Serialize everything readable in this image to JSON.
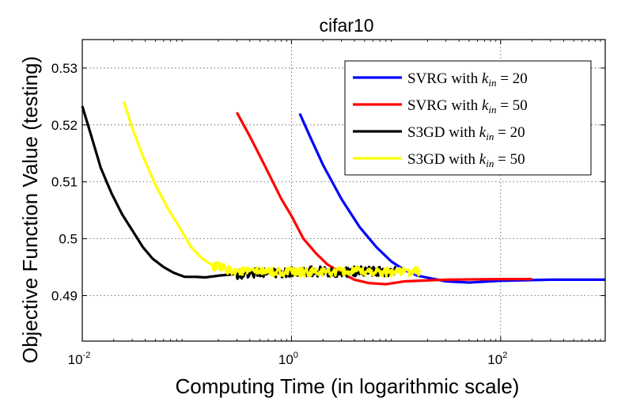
{
  "chart_data": {
    "type": "line",
    "title": "cifar10",
    "xlabel": "Computing Time (in logarithmic scale)",
    "ylabel": "Objective Function Value (testing)",
    "x_scale": "log",
    "xlim": [
      0.01,
      1000
    ],
    "ylim": [
      0.482,
      0.535
    ],
    "x_ticks": [
      {
        "value": 0.01,
        "base": "10",
        "exp": "-2"
      },
      {
        "value": 1,
        "base": "10",
        "exp": "0"
      },
      {
        "value": 100,
        "base": "10",
        "exp": "2"
      }
    ],
    "y_ticks": [
      {
        "value": 0.49,
        "label": "0.49"
      },
      {
        "value": 0.5,
        "label": "0.5"
      },
      {
        "value": 0.51,
        "label": "0.51"
      },
      {
        "value": 0.52,
        "label": "0.52"
      },
      {
        "value": 0.53,
        "label": "0.53"
      }
    ],
    "grid": true,
    "legend_position": "top-right",
    "series": [
      {
        "name": "SVRG with k_in = 20",
        "legend_prefix": "SVRG with ",
        "legend_var": "k",
        "legend_sub": "in",
        "legend_suffix": " = 20",
        "color": "#0000ff",
        "noise": false,
        "x": [
          1.2,
          1.5,
          2.0,
          3.0,
          4.5,
          6.5,
          9.0,
          12.0,
          16.0,
          22.0,
          30.0,
          50.0,
          100.0,
          300.0,
          1000.0
        ],
        "y": [
          0.522,
          0.518,
          0.513,
          0.507,
          0.502,
          0.4985,
          0.496,
          0.4945,
          0.4935,
          0.493,
          0.4925,
          0.4923,
          0.4926,
          0.4928,
          0.4928
        ]
      },
      {
        "name": "SVRG with k_in = 50",
        "legend_prefix": "SVRG with ",
        "legend_var": "k",
        "legend_sub": "in",
        "legend_suffix": " = 50",
        "color": "#ff0000",
        "noise": false,
        "x": [
          0.3,
          0.4,
          0.55,
          0.8,
          1.0,
          1.3,
          1.7,
          2.2,
          3.0,
          4.0,
          5.5,
          8.0,
          12.0,
          30.0,
          100.0,
          200.0
        ],
        "y": [
          0.5222,
          0.518,
          0.513,
          0.507,
          0.504,
          0.5,
          0.4975,
          0.4955,
          0.494,
          0.4928,
          0.4922,
          0.492,
          0.4925,
          0.4928,
          0.4929,
          0.4929
        ]
      },
      {
        "name": "S3GD with k_in = 20",
        "legend_prefix": "S3GD with ",
        "legend_var": "k",
        "legend_sub": "in",
        "legend_suffix": " = 20",
        "color": "#000000",
        "noise": true,
        "noise_from": 0.3,
        "noise_amp": 0.0009,
        "x": [
          0.01,
          0.012,
          0.015,
          0.019,
          0.024,
          0.03,
          0.038,
          0.047,
          0.06,
          0.075,
          0.095,
          0.12,
          0.15,
          0.2,
          0.3,
          0.5,
          1.0,
          2.0,
          4.0,
          8.0,
          10.0
        ],
        "y": [
          0.5233,
          0.5185,
          0.5125,
          0.508,
          0.5043,
          0.5015,
          0.4985,
          0.4965,
          0.495,
          0.494,
          0.4933,
          0.4933,
          0.4932,
          0.4935,
          0.4938,
          0.494,
          0.4942,
          0.4942,
          0.4942,
          0.4942,
          0.4942
        ]
      },
      {
        "name": "S3GD with k_in = 50",
        "legend_prefix": "S3GD with ",
        "legend_var": "k",
        "legend_sub": "in",
        "legend_suffix": " = 50",
        "color": "#ffff00",
        "noise": true,
        "noise_from": 0.18,
        "noise_amp": 0.0008,
        "x": [
          0.025,
          0.03,
          0.038,
          0.05,
          0.065,
          0.085,
          0.11,
          0.14,
          0.18,
          0.25,
          0.4,
          0.7,
          1.2,
          2.0,
          3.5,
          6.0,
          10.0,
          17.0
        ],
        "y": [
          0.5241,
          0.5195,
          0.5145,
          0.5095,
          0.5055,
          0.502,
          0.4985,
          0.4965,
          0.4952,
          0.4945,
          0.4942,
          0.4942,
          0.4941,
          0.4941,
          0.4942,
          0.4942,
          0.4942,
          0.4942
        ]
      }
    ]
  }
}
